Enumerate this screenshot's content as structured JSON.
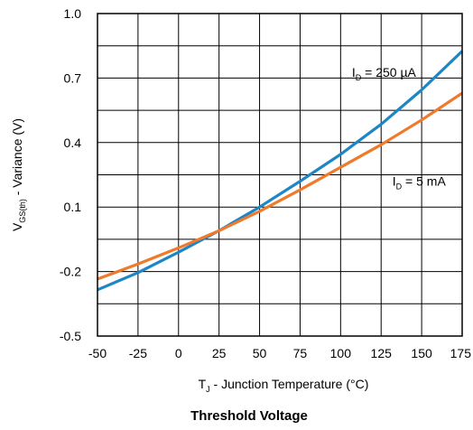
{
  "chart_data": {
    "type": "line",
    "title": "",
    "caption": "Threshold Voltage",
    "xlabel": {
      "main": "T",
      "sub": "J",
      "rest": " - Junction Temperature (°C)"
    },
    "ylabel": {
      "main": "V",
      "sub": "GS(th)",
      "rest": " - Variance (V)"
    },
    "xlim": [
      -50,
      175
    ],
    "ylim": [
      -0.5,
      1.0
    ],
    "x_ticks": [
      -50,
      -25,
      0,
      25,
      50,
      75,
      100,
      125,
      150,
      175
    ],
    "x_tick_labels": [
      "-50",
      "-25",
      "0",
      "25",
      "50",
      "75",
      "100",
      "125",
      "150",
      "175"
    ],
    "y_ticks": [
      -0.5,
      -0.2,
      0.1,
      0.4,
      0.7,
      1.0
    ],
    "y_tick_labels": [
      "-0.5",
      "-0.2",
      "0.1",
      "0.4",
      "0.7",
      "1.0"
    ],
    "x_grid": [
      -50,
      -25,
      0,
      25,
      50,
      75,
      100,
      125,
      150,
      175
    ],
    "y_grid": [
      -0.5,
      -0.35,
      -0.2,
      -0.05,
      0.1,
      0.25,
      0.4,
      0.55,
      0.7,
      0.85,
      1.0
    ],
    "grid": true,
    "series": [
      {
        "name": {
          "main": "I",
          "sub": "D",
          "rest": " = 250 µA"
        },
        "color": "#1f86c6",
        "x": [
          -50,
          -25,
          0,
          25,
          50,
          75,
          100,
          125,
          150,
          175
        ],
        "y": [
          -0.285,
          -0.205,
          -0.11,
          -0.01,
          0.1,
          0.22,
          0.345,
          0.485,
          0.645,
          0.825
        ]
      },
      {
        "name": {
          "main": "I",
          "sub": "D",
          "rest": " = 5 mA"
        },
        "color": "#f07a2c",
        "x": [
          -50,
          -25,
          0,
          25,
          50,
          75,
          100,
          125,
          150,
          175
        ],
        "y": [
          -0.235,
          -0.165,
          -0.09,
          -0.01,
          0.08,
          0.18,
          0.285,
          0.39,
          0.505,
          0.63
        ]
      }
    ]
  }
}
